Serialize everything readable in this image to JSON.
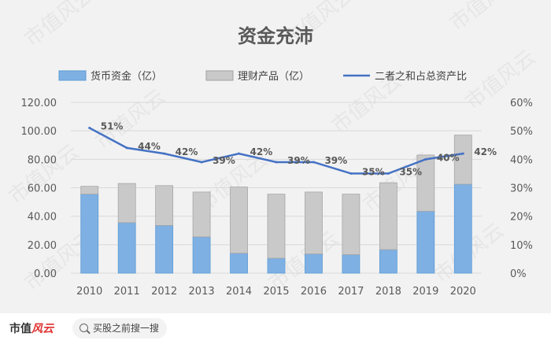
{
  "chart_data": {
    "type": "bar",
    "title": "资金充沛",
    "categories": [
      "2010",
      "2011",
      "2012",
      "2013",
      "2014",
      "2015",
      "2016",
      "2017",
      "2018",
      "2019",
      "2020"
    ],
    "series": [
      {
        "name": "货币资金（亿）",
        "type": "bar",
        "color": "#7fb0e3",
        "values": [
          55.5,
          35.5,
          33.5,
          25.5,
          14,
          10.5,
          13.5,
          13,
          16.5,
          43.5,
          62.5
        ]
      },
      {
        "name": "理财产品（亿）",
        "type": "bar",
        "color": "#c9c9c9",
        "values": [
          5.5,
          27.5,
          28,
          31.5,
          46.5,
          45,
          43.5,
          42.5,
          47,
          39.5,
          34.5
        ]
      },
      {
        "name": "二者之和占总资产比",
        "type": "line",
        "axis": "right",
        "color": "#4472c4",
        "values": [
          0.51,
          0.44,
          0.42,
          0.39,
          0.42,
          0.39,
          0.39,
          0.35,
          0.35,
          0.4,
          0.42
        ]
      }
    ],
    "ratio_labels": [
      "51%",
      "44%",
      "42%",
      "39%",
      "42%",
      "39%",
      "39%",
      "35%",
      "35%",
      "40%",
      "42%"
    ],
    "y_left": {
      "min": 0,
      "max": 120,
      "ticks": [
        "0.00",
        "20.00",
        "40.00",
        "60.00",
        "80.00",
        "100.00",
        "120.00"
      ]
    },
    "y_right": {
      "min": 0,
      "max": 0.6,
      "ticks": [
        "0%",
        "10%",
        "20%",
        "30%",
        "40%",
        "50%",
        "60%"
      ]
    },
    "grid": true,
    "legend_position": "top"
  },
  "watermark": "市值风云",
  "footer": {
    "brand_main": "市值",
    "brand_accent": "风云",
    "search_label": "买股之前搜一搜"
  }
}
